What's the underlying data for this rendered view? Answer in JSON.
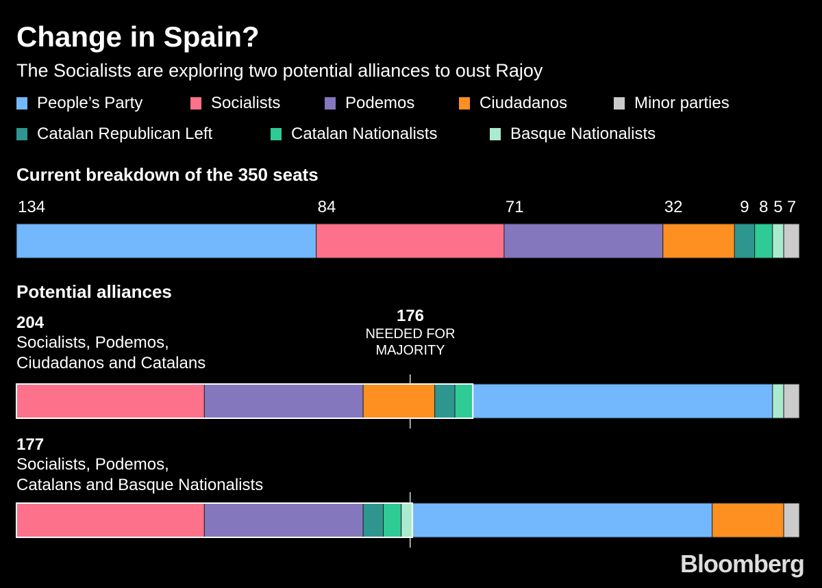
{
  "title": "Change in Spain?",
  "subtitle": "The Socialists are exploring two potential alliances to oust Rajoy",
  "legend": [
    {
      "key": "pp",
      "label": "People’s Party",
      "color": "#73b8fd"
    },
    {
      "key": "psoe",
      "label": "Socialists",
      "color": "#fd718a"
    },
    {
      "key": "podemos",
      "label": "Podemos",
      "color": "#8477bd"
    },
    {
      "key": "cs",
      "label": "Ciudadanos",
      "color": "#fd9020"
    },
    {
      "key": "minor",
      "label": "Minor parties",
      "color": "#cbcbcb"
    },
    {
      "key": "erc",
      "label": "Catalan Republican Left",
      "color": "#2e968f"
    },
    {
      "key": "cdc",
      "label": "Catalan Nationalists",
      "color": "#2ecb95"
    },
    {
      "key": "pnv",
      "label": "Basque Nationalists",
      "color": "#aaebd0"
    }
  ],
  "current_heading": "Current breakdown of the 350 seats",
  "alliances_heading": "Potential alliances",
  "majority": {
    "value": "176",
    "label_line1": "NEEDED FOR",
    "label_line2": "MAJORITY"
  },
  "alliance1": {
    "total": "204",
    "line1": "Socialists, Podemos,",
    "line2": "Ciudadanos and Catalans"
  },
  "alliance2": {
    "total": "177",
    "line1": "Socialists, Podemos,",
    "line2": "Catalans and Basque Nationalists"
  },
  "brand": "Bloomberg",
  "chart_data": {
    "type": "stacked-bar",
    "total_seats": 350,
    "majority_threshold": 176,
    "current": [
      {
        "party": "pp",
        "seats": 134
      },
      {
        "party": "psoe",
        "seats": 84
      },
      {
        "party": "podemos",
        "seats": 71
      },
      {
        "party": "cs",
        "seats": 32
      },
      {
        "party": "erc",
        "seats": 9
      },
      {
        "party": "cdc",
        "seats": 8
      },
      {
        "party": "pnv",
        "seats": 5
      },
      {
        "party": "minor",
        "seats": 7
      }
    ],
    "alliances": [
      {
        "total": 204,
        "members": [
          "psoe",
          "podemos",
          "cs",
          "erc",
          "cdc"
        ],
        "order": [
          "psoe",
          "podemos",
          "cs",
          "erc",
          "cdc",
          "pp",
          "pnv",
          "minor"
        ]
      },
      {
        "total": 177,
        "members": [
          "psoe",
          "podemos",
          "erc",
          "cdc",
          "pnv"
        ],
        "order": [
          "psoe",
          "podemos",
          "erc",
          "cdc",
          "pnv",
          "pp",
          "cs",
          "minor"
        ]
      }
    ]
  }
}
